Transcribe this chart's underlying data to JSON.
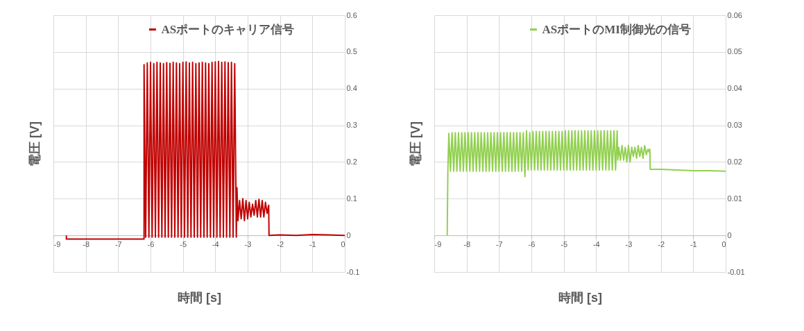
{
  "chart_data": [
    {
      "type": "line",
      "xlabel": "時間 [s]",
      "ylabel": "電圧 [V]",
      "xlim": [
        -9,
        0
      ],
      "xticks": [
        -9,
        -8,
        -7,
        -6,
        -5,
        -4,
        -3,
        -2,
        -1,
        0
      ],
      "ylim": [
        -0.1,
        0.6
      ],
      "yticks": [
        -0.1,
        0,
        0.1,
        0.2,
        0.3,
        0.4,
        0.5,
        0.6
      ],
      "grid": true,
      "legend": "top",
      "line_style": "solid",
      "marker": "none",
      "series": [
        {
          "name": "ASポートのキャリア信号",
          "color": "#c00000",
          "x": [
            -8.6,
            -8.6,
            -6.2,
            -6.2,
            -6.15,
            -6.1,
            -6.05,
            -6.0,
            -5.95,
            -5.9,
            -5.85,
            -5.8,
            -5.75,
            -5.7,
            -5.65,
            -5.6,
            -5.55,
            -5.5,
            -5.45,
            -5.4,
            -5.35,
            -5.3,
            -5.25,
            -5.2,
            -5.15,
            -5.1,
            -5.05,
            -5.0,
            -4.95,
            -4.9,
            -4.85,
            -4.8,
            -4.75,
            -4.7,
            -4.65,
            -4.6,
            -4.55,
            -4.5,
            -4.45,
            -4.4,
            -4.35,
            -4.3,
            -4.25,
            -4.2,
            -4.15,
            -4.1,
            -4.05,
            -4.0,
            -3.95,
            -3.9,
            -3.85,
            -3.8,
            -3.75,
            -3.7,
            -3.65,
            -3.6,
            -3.55,
            -3.5,
            -3.45,
            -3.4,
            -3.35,
            -3.33,
            -3.3,
            -3.25,
            -3.2,
            -3.15,
            -3.1,
            -3.05,
            -3.0,
            -2.95,
            -2.9,
            -2.85,
            -2.8,
            -2.75,
            -2.7,
            -2.65,
            -2.6,
            -2.55,
            -2.5,
            -2.45,
            -2.4,
            -2.35,
            -2.34,
            -2.0,
            -1.5,
            -1.0,
            -0.5,
            0
          ],
          "values": [
            0,
            -0.01,
            -0.01,
            0.465,
            -0.005,
            0.47,
            -0.005,
            0.472,
            -0.005,
            0.468,
            -0.005,
            0.472,
            -0.005,
            0.47,
            -0.005,
            0.468,
            -0.005,
            0.471,
            -0.005,
            0.469,
            -0.005,
            0.472,
            -0.005,
            0.47,
            -0.005,
            0.468,
            -0.005,
            0.472,
            -0.005,
            0.473,
            -0.005,
            0.47,
            -0.005,
            0.472,
            -0.005,
            0.468,
            -0.005,
            0.47,
            -0.005,
            0.472,
            -0.005,
            0.47,
            -0.005,
            0.468,
            -0.005,
            0.472,
            -0.005,
            0.473,
            -0.005,
            0.474,
            -0.005,
            0.472,
            -0.005,
            0.473,
            -0.005,
            0.471,
            -0.005,
            0.472,
            -0.005,
            0.468,
            -0.005,
            0.13,
            0.04,
            0.095,
            0.045,
            0.1,
            0.04,
            0.095,
            0.045,
            0.09,
            0.05,
            0.085,
            0.055,
            0.095,
            0.05,
            0.098,
            0.05,
            0.095,
            0.05,
            0.09,
            0.06,
            0.082,
            0,
            0.001,
            0,
            0.002,
            0.001,
            0
          ]
        }
      ]
    },
    {
      "type": "line",
      "xlabel": "時間 [s]",
      "ylabel": "電圧 [V]",
      "xlim": [
        -9,
        0
      ],
      "xticks": [
        -9,
        -8,
        -7,
        -6,
        -5,
        -4,
        -3,
        -2,
        -1,
        0
      ],
      "ylim": [
        -0.01,
        0.06
      ],
      "yticks": [
        -0.01,
        0,
        0.01,
        0.02,
        0.03,
        0.04,
        0.05,
        0.06
      ],
      "grid": true,
      "legend": "top",
      "line_style": "solid",
      "marker": "none",
      "series": [
        {
          "name": "ASポートのMI制御光の信号",
          "color": "#92d050",
          "x": [
            -8.6,
            -8.58,
            -8.55,
            -8.5,
            -8.45,
            -8.4,
            -8.35,
            -8.3,
            -8.25,
            -8.2,
            -8.15,
            -8.1,
            -8.05,
            -8.0,
            -7.95,
            -7.9,
            -7.85,
            -7.8,
            -7.75,
            -7.7,
            -7.65,
            -7.6,
            -7.55,
            -7.5,
            -7.45,
            -7.4,
            -7.35,
            -7.3,
            -7.25,
            -7.2,
            -7.15,
            -7.1,
            -7.05,
            -7.0,
            -6.95,
            -6.9,
            -6.85,
            -6.8,
            -6.75,
            -6.7,
            -6.65,
            -6.6,
            -6.55,
            -6.5,
            -6.45,
            -6.4,
            -6.35,
            -6.3,
            -6.25,
            -6.2,
            -6.15,
            -6.1,
            -6.05,
            -6.0,
            -5.95,
            -5.9,
            -5.85,
            -5.8,
            -5.75,
            -5.7,
            -5.65,
            -5.6,
            -5.55,
            -5.5,
            -5.45,
            -5.4,
            -5.35,
            -5.3,
            -5.25,
            -5.2,
            -5.15,
            -5.1,
            -5.05,
            -5.0,
            -4.95,
            -4.9,
            -4.85,
            -4.8,
            -4.75,
            -4.7,
            -4.65,
            -4.6,
            -4.55,
            -4.5,
            -4.45,
            -4.4,
            -4.35,
            -4.3,
            -4.25,
            -4.2,
            -4.15,
            -4.1,
            -4.05,
            -4.0,
            -3.95,
            -3.9,
            -3.85,
            -3.8,
            -3.75,
            -3.7,
            -3.65,
            -3.6,
            -3.55,
            -3.5,
            -3.45,
            -3.4,
            -3.35,
            -3.33,
            -3.3,
            -3.25,
            -3.2,
            -3.15,
            -3.1,
            -3.05,
            -3.0,
            -2.95,
            -2.9,
            -2.85,
            -2.8,
            -2.75,
            -2.7,
            -2.65,
            -2.6,
            -2.55,
            -2.5,
            -2.45,
            -2.4,
            -2.35,
            -2.34,
            -2.33,
            -2.0,
            -1.5,
            -1.0,
            -0.5,
            0
          ],
          "values": [
            0,
            0.0175,
            0.0278,
            0.0175,
            0.028,
            0.0175,
            0.028,
            0.0175,
            0.028,
            0.0175,
            0.028,
            0.0175,
            0.028,
            0.0175,
            0.028,
            0.0175,
            0.028,
            0.0175,
            0.028,
            0.0175,
            0.028,
            0.0175,
            0.028,
            0.0175,
            0.028,
            0.0175,
            0.028,
            0.0175,
            0.028,
            0.0175,
            0.028,
            0.0175,
            0.028,
            0.0175,
            0.028,
            0.0175,
            0.028,
            0.0175,
            0.028,
            0.0175,
            0.028,
            0.0175,
            0.028,
            0.0175,
            0.028,
            0.0175,
            0.028,
            0.0175,
            0.028,
            0.016,
            0.0285,
            0.0178,
            0.028,
            0.0178,
            0.0283,
            0.0178,
            0.0283,
            0.0178,
            0.0283,
            0.0178,
            0.0283,
            0.0178,
            0.0283,
            0.0178,
            0.0283,
            0.0178,
            0.0283,
            0.0178,
            0.0283,
            0.0178,
            0.0283,
            0.0178,
            0.0283,
            0.0178,
            0.0285,
            0.0178,
            0.0285,
            0.0178,
            0.0285,
            0.0178,
            0.0285,
            0.0178,
            0.0285,
            0.0178,
            0.0285,
            0.0178,
            0.0285,
            0.0178,
            0.0285,
            0.0178,
            0.0285,
            0.0178,
            0.0285,
            0.0178,
            0.0285,
            0.0178,
            0.0285,
            0.0178,
            0.0285,
            0.0178,
            0.0285,
            0.0178,
            0.0285,
            0.0178,
            0.0285,
            0.0178,
            0.0285,
            0.0205,
            0.024,
            0.0205,
            0.0245,
            0.0205,
            0.024,
            0.02,
            0.0245,
            0.02,
            0.024,
            0.0215,
            0.024,
            0.021,
            0.0245,
            0.0215,
            0.024,
            0.021,
            0.0245,
            0.022,
            0.0235,
            0.0225,
            0.0235,
            0.018,
            0.018,
            0.0178,
            0.0176,
            0.0176,
            0.0175
          ]
        }
      ]
    }
  ]
}
